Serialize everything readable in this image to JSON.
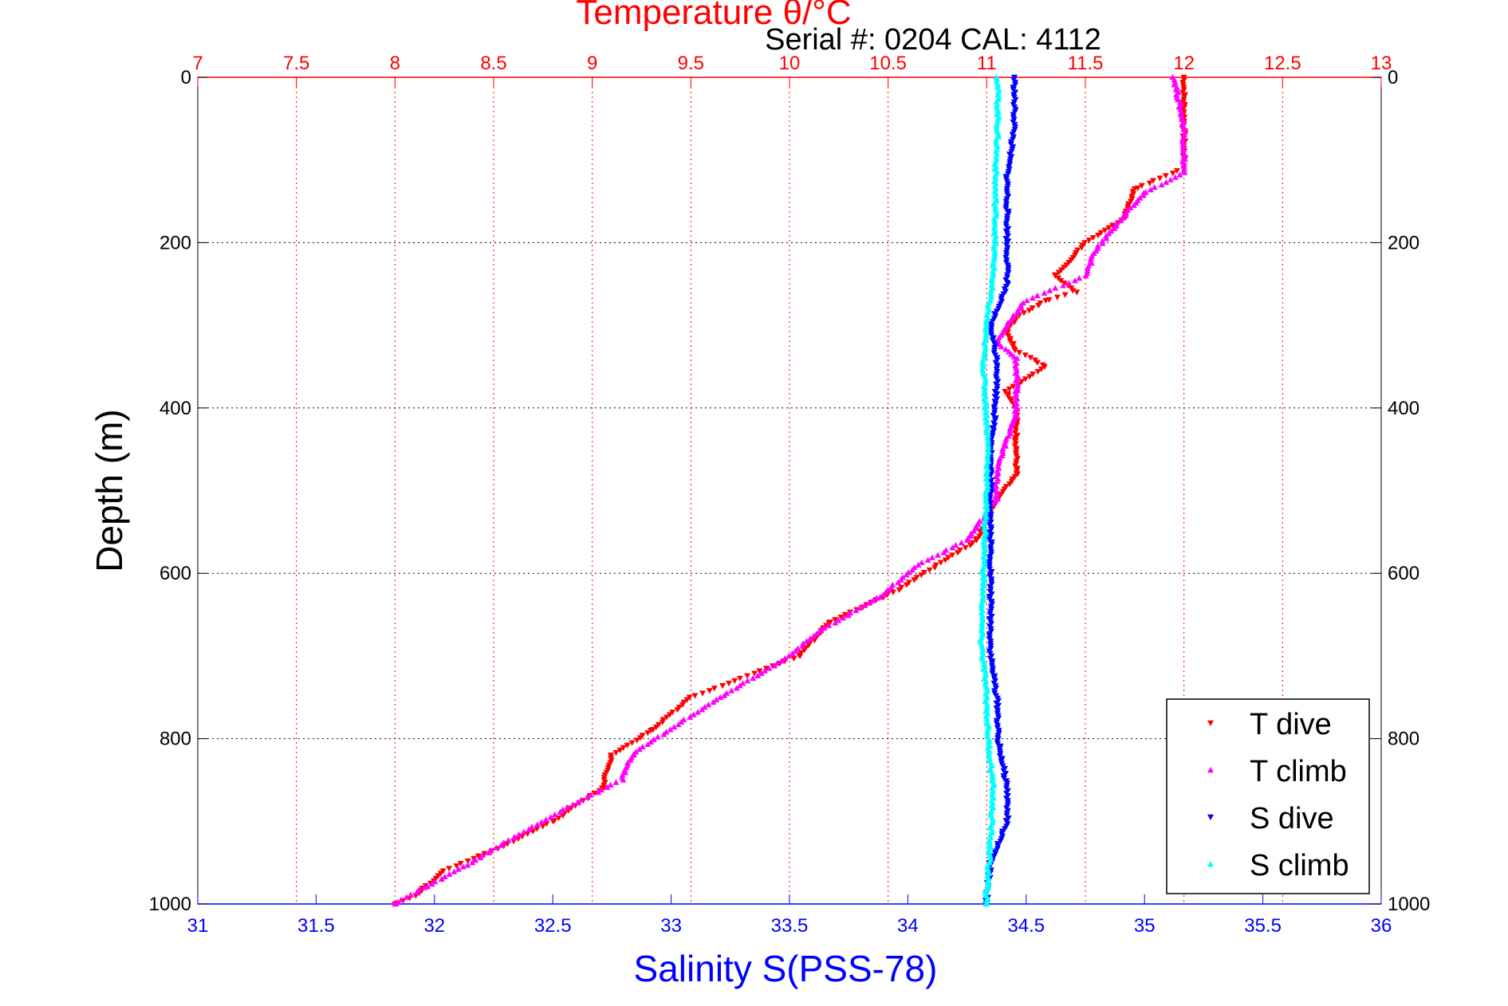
{
  "chart_data": {
    "type": "scatter",
    "title_top": "Temperature θ/°C",
    "subtitle": "Serial #: 0204  CAL: 4112",
    "ylabel": "Depth (m)",
    "xlabel_bottom": "Salinity S(PSS-78)",
    "y_reversed": true,
    "ylim": [
      0,
      1000
    ],
    "y_ticks": [
      "0",
      "200",
      "400",
      "600",
      "800",
      "1000"
    ],
    "y_tick_values": [
      0,
      200,
      400,
      600,
      800,
      1000
    ],
    "temperature_axis": {
      "range": [
        7,
        13
      ],
      "ticks": [
        "7",
        "7.5",
        "8",
        "8.5",
        "9",
        "9.5",
        "10",
        "10.5",
        "11",
        "11.5",
        "12",
        "12.5",
        "13"
      ],
      "tick_values": [
        7,
        7.5,
        8,
        8.5,
        9,
        9.5,
        10,
        10.5,
        11,
        11.5,
        12,
        12.5,
        13
      ],
      "color": "#ff0000"
    },
    "salinity_axis": {
      "range": [
        31,
        36
      ],
      "ticks": [
        "31",
        "31.5",
        "32",
        "32.5",
        "33",
        "33.5",
        "34",
        "34.5",
        "35",
        "35.5",
        "36"
      ],
      "tick_values": [
        31,
        31.5,
        32,
        32.5,
        33,
        33.5,
        34,
        34.5,
        35,
        35.5,
        36
      ],
      "color": "#0000ff"
    },
    "grid": true,
    "legend_position": "bottom-right",
    "series": [
      {
        "name": "T dive",
        "axis": "temperature",
        "color": "#ff0000",
        "marker": "triangle-down",
        "points": [
          [
            12.0,
            0
          ],
          [
            12.0,
            50
          ],
          [
            12.0,
            110
          ],
          [
            11.75,
            135
          ],
          [
            11.7,
            170
          ],
          [
            11.5,
            200
          ],
          [
            11.35,
            240
          ],
          [
            11.45,
            260
          ],
          [
            11.3,
            270
          ],
          [
            11.15,
            290
          ],
          [
            11.1,
            310
          ],
          [
            11.15,
            330
          ],
          [
            11.3,
            350
          ],
          [
            11.1,
            380
          ],
          [
            11.15,
            400
          ],
          [
            11.15,
            440
          ],
          [
            11.15,
            480
          ],
          [
            11.05,
            510
          ],
          [
            10.95,
            560
          ],
          [
            10.75,
            590
          ],
          [
            10.55,
            620
          ],
          [
            10.2,
            660
          ],
          [
            10.05,
            700
          ],
          [
            9.5,
            750
          ],
          [
            9.3,
            790
          ],
          [
            9.1,
            820
          ],
          [
            9.05,
            860
          ],
          [
            8.8,
            900
          ],
          [
            8.55,
            930
          ],
          [
            8.25,
            960
          ],
          [
            8.1,
            990
          ],
          [
            8.0,
            1000
          ]
        ]
      },
      {
        "name": "T climb",
        "axis": "temperature",
        "color": "#ff00ff",
        "marker": "triangle-up",
        "points": [
          [
            11.95,
            0
          ],
          [
            12.0,
            60
          ],
          [
            12.0,
            115
          ],
          [
            11.8,
            140
          ],
          [
            11.65,
            180
          ],
          [
            11.55,
            210
          ],
          [
            11.5,
            240
          ],
          [
            11.35,
            255
          ],
          [
            11.2,
            270
          ],
          [
            11.1,
            300
          ],
          [
            11.05,
            320
          ],
          [
            11.15,
            340
          ],
          [
            11.15,
            380
          ],
          [
            11.15,
            410
          ],
          [
            11.1,
            440
          ],
          [
            11.05,
            480
          ],
          [
            11.05,
            510
          ],
          [
            10.9,
            560
          ],
          [
            10.65,
            590
          ],
          [
            10.45,
            630
          ],
          [
            10.15,
            670
          ],
          [
            10.0,
            700
          ],
          [
            9.65,
            750
          ],
          [
            9.45,
            780
          ],
          [
            9.2,
            820
          ],
          [
            9.15,
            850
          ],
          [
            8.9,
            880
          ],
          [
            8.6,
            920
          ],
          [
            8.35,
            955
          ],
          [
            8.15,
            980
          ],
          [
            8.0,
            1000
          ]
        ]
      },
      {
        "name": "S dive",
        "axis": "salinity",
        "color": "#0000ff",
        "marker": "triangle-down",
        "points": [
          [
            34.45,
            0
          ],
          [
            34.45,
            60
          ],
          [
            34.42,
            120
          ],
          [
            34.42,
            200
          ],
          [
            34.42,
            250
          ],
          [
            34.35,
            300
          ],
          [
            34.38,
            350
          ],
          [
            34.37,
            400
          ],
          [
            34.35,
            460
          ],
          [
            34.35,
            520
          ],
          [
            34.35,
            580
          ],
          [
            34.35,
            640
          ],
          [
            34.35,
            700
          ],
          [
            34.38,
            760
          ],
          [
            34.38,
            800
          ],
          [
            34.42,
            860
          ],
          [
            34.42,
            900
          ],
          [
            34.35,
            950
          ],
          [
            34.33,
            1000
          ]
        ]
      },
      {
        "name": "S climb",
        "axis": "salinity",
        "color": "#00ffff",
        "marker": "triangle-up",
        "points": [
          [
            34.38,
            0
          ],
          [
            34.38,
            60
          ],
          [
            34.37,
            120
          ],
          [
            34.37,
            180
          ],
          [
            34.36,
            240
          ],
          [
            34.33,
            300
          ],
          [
            34.32,
            350
          ],
          [
            34.33,
            400
          ],
          [
            34.34,
            450
          ],
          [
            34.33,
            520
          ],
          [
            34.32,
            600
          ],
          [
            34.31,
            680
          ],
          [
            34.33,
            740
          ],
          [
            34.34,
            800
          ],
          [
            34.36,
            860
          ],
          [
            34.35,
            920
          ],
          [
            34.34,
            960
          ],
          [
            34.33,
            1000
          ]
        ]
      }
    ]
  }
}
